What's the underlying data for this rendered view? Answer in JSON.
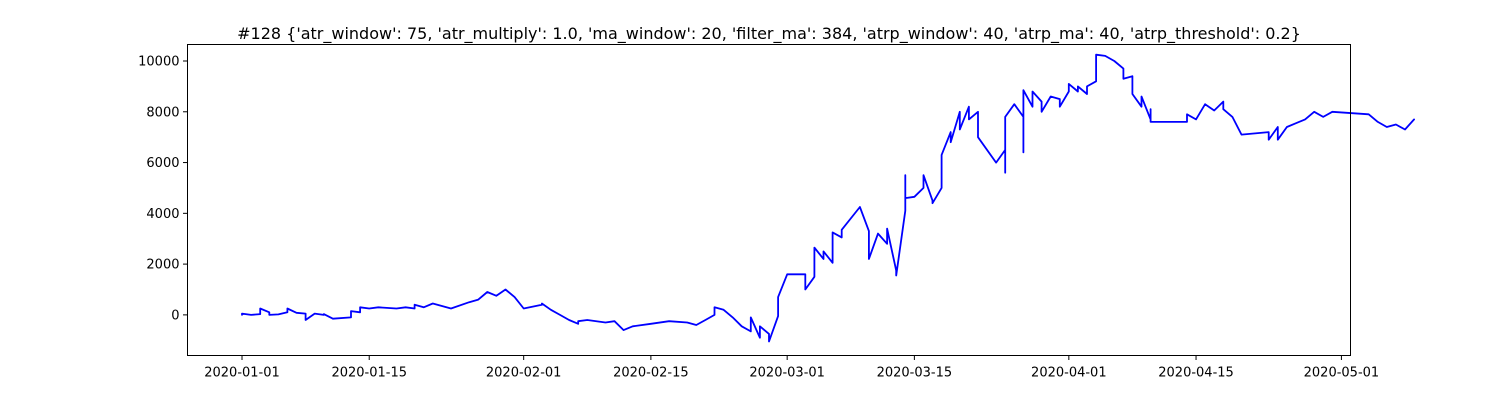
{
  "chart_data": {
    "type": "line",
    "title": "#128 {'atr_window': 75, 'atr_multiply': 1.0, 'ma_window': 20, 'filter_ma': 384, 'atrp_window': 40, 'atrp_ma': 40, 'atrp_threshold': 0.2}",
    "xlabel": "",
    "ylabel": "",
    "x_type": "date",
    "xlim": [
      "2019-12-26",
      "2020-05-02"
    ],
    "ylim": [
      -1600,
      10650
    ],
    "grid": false,
    "line_color": "#0000ff",
    "x_ticks": [
      {
        "value": "2020-01-01",
        "label": "2020-01-01"
      },
      {
        "value": "2020-01-15",
        "label": "2020-01-15"
      },
      {
        "value": "2020-02-01",
        "label": "2020-02-01"
      },
      {
        "value": "2020-02-15",
        "label": "2020-02-15"
      },
      {
        "value": "2020-03-01",
        "label": "2020-03-01"
      },
      {
        "value": "2020-03-15",
        "label": "2020-03-15"
      },
      {
        "value": "2020-04-01",
        "label": "2020-04-01"
      },
      {
        "value": "2020-04-15",
        "label": "2020-04-15"
      },
      {
        "value": "2020-05-01",
        "label": "2020-05-01"
      }
    ],
    "y_ticks": [
      {
        "value": 0,
        "label": "0"
      },
      {
        "value": 2000,
        "label": "2000"
      },
      {
        "value": 4000,
        "label": "4000"
      },
      {
        "value": 6000,
        "label": "6000"
      },
      {
        "value": 8000,
        "label": "8000"
      },
      {
        "value": 10000,
        "label": "10000"
      }
    ],
    "series": [
      {
        "points": [
          [
            "2020-01-01",
            0
          ],
          [
            "2020-01-01",
            50
          ],
          [
            "2020-01-02",
            0
          ],
          [
            "2020-01-03",
            30
          ],
          [
            "2020-01-03",
            250
          ],
          [
            "2020-01-04",
            100
          ],
          [
            "2020-01-04",
            0
          ],
          [
            "2020-01-05",
            20
          ],
          [
            "2020-01-06",
            100
          ],
          [
            "2020-01-06",
            250
          ],
          [
            "2020-01-07",
            80
          ],
          [
            "2020-01-08",
            50
          ],
          [
            "2020-01-08",
            -200
          ],
          [
            "2020-01-09",
            50
          ],
          [
            "2020-01-10",
            0
          ],
          [
            "2020-01-10",
            30
          ],
          [
            "2020-01-11",
            -150
          ],
          [
            "2020-01-13",
            -100
          ],
          [
            "2020-01-13",
            150
          ],
          [
            "2020-01-14",
            100
          ],
          [
            "2020-01-14",
            300
          ],
          [
            "2020-01-15",
            250
          ],
          [
            "2020-01-16",
            300
          ],
          [
            "2020-01-18",
            250
          ],
          [
            "2020-01-19",
            300
          ],
          [
            "2020-01-20",
            250
          ],
          [
            "2020-01-20",
            400
          ],
          [
            "2020-01-21",
            300
          ],
          [
            "2020-01-22",
            450
          ],
          [
            "2020-01-23",
            350
          ],
          [
            "2020-01-24",
            250
          ],
          [
            "2020-01-26",
            500
          ],
          [
            "2020-01-27",
            600
          ],
          [
            "2020-01-28",
            900
          ],
          [
            "2020-01-29",
            750
          ],
          [
            "2020-01-30",
            1000
          ],
          [
            "2020-01-31",
            700
          ],
          [
            "2020-02-01",
            250
          ],
          [
            "2020-02-03",
            400
          ],
          [
            "2020-02-03",
            450
          ],
          [
            "2020-02-04",
            200
          ],
          [
            "2020-02-05",
            0
          ],
          [
            "2020-02-06",
            -200
          ],
          [
            "2020-02-07",
            -350
          ],
          [
            "2020-02-07",
            -250
          ],
          [
            "2020-02-08",
            -200
          ],
          [
            "2020-02-10",
            -300
          ],
          [
            "2020-02-11",
            -250
          ],
          [
            "2020-02-12",
            -600
          ],
          [
            "2020-02-13",
            -450
          ],
          [
            "2020-02-15",
            -350
          ],
          [
            "2020-02-17",
            -250
          ],
          [
            "2020-02-19",
            -300
          ],
          [
            "2020-02-20",
            -400
          ],
          [
            "2020-02-21",
            -200
          ],
          [
            "2020-02-22",
            0
          ],
          [
            "2020-02-22",
            300
          ],
          [
            "2020-02-23",
            200
          ],
          [
            "2020-02-24",
            -100
          ],
          [
            "2020-02-25",
            -450
          ],
          [
            "2020-02-26",
            -650
          ],
          [
            "2020-02-26",
            -100
          ],
          [
            "2020-02-27",
            -900
          ],
          [
            "2020-02-27",
            -450
          ],
          [
            "2020-02-28",
            -750
          ],
          [
            "2020-02-28",
            -1050
          ],
          [
            "2020-02-29",
            -50
          ],
          [
            "2020-02-29",
            700
          ],
          [
            "2020-03-01",
            1600
          ],
          [
            "2020-03-03",
            1600
          ],
          [
            "2020-03-03",
            1550
          ],
          [
            "2020-03-03",
            1000
          ],
          [
            "2020-03-04",
            1500
          ],
          [
            "2020-03-04",
            2650
          ],
          [
            "2020-03-05",
            2200
          ],
          [
            "2020-03-05",
            2500
          ],
          [
            "2020-03-06",
            2050
          ],
          [
            "2020-03-06",
            2700
          ],
          [
            "2020-03-06",
            3250
          ],
          [
            "2020-03-07",
            3050
          ],
          [
            "2020-03-07",
            3350
          ],
          [
            "2020-03-09",
            4250
          ],
          [
            "2020-03-10",
            3300
          ],
          [
            "2020-03-10",
            2200
          ],
          [
            "2020-03-11",
            3200
          ],
          [
            "2020-03-12",
            2800
          ],
          [
            "2020-03-12",
            3400
          ],
          [
            "2020-03-13",
            1750
          ],
          [
            "2020-03-13",
            1550
          ],
          [
            "2020-03-14",
            4100
          ],
          [
            "2020-03-14",
            5500
          ],
          [
            "2020-03-14",
            4600
          ],
          [
            "2020-03-15",
            4650
          ],
          [
            "2020-03-16",
            5000
          ],
          [
            "2020-03-16",
            5500
          ],
          [
            "2020-03-17",
            4500
          ],
          [
            "2020-03-17",
            4400
          ],
          [
            "2020-03-18",
            5000
          ],
          [
            "2020-03-18",
            6300
          ],
          [
            "2020-03-19",
            7200
          ],
          [
            "2020-03-19",
            6800
          ],
          [
            "2020-03-20",
            8000
          ],
          [
            "2020-03-20",
            7300
          ],
          [
            "2020-03-21",
            8200
          ],
          [
            "2020-03-21",
            7700
          ],
          [
            "2020-03-22",
            8000
          ],
          [
            "2020-03-22",
            7000
          ],
          [
            "2020-03-24",
            6000
          ],
          [
            "2020-03-25",
            6500
          ],
          [
            "2020-03-25",
            5600
          ],
          [
            "2020-03-25",
            7800
          ],
          [
            "2020-03-26",
            8300
          ],
          [
            "2020-03-27",
            7800
          ],
          [
            "2020-03-27",
            6400
          ],
          [
            "2020-03-27",
            8850
          ],
          [
            "2020-03-28",
            8200
          ],
          [
            "2020-03-28",
            8800
          ],
          [
            "2020-03-29",
            8400
          ],
          [
            "2020-03-29",
            8000
          ],
          [
            "2020-03-30",
            8600
          ],
          [
            "2020-03-31",
            8500
          ],
          [
            "2020-03-31",
            8200
          ],
          [
            "2020-04-01",
            8800
          ],
          [
            "2020-04-01",
            9100
          ],
          [
            "2020-04-02",
            8800
          ],
          [
            "2020-04-02",
            9000
          ],
          [
            "2020-04-03",
            8700
          ],
          [
            "2020-04-03",
            9000
          ],
          [
            "2020-04-04",
            9200
          ],
          [
            "2020-04-04",
            10250
          ],
          [
            "2020-04-05",
            10200
          ],
          [
            "2020-04-06",
            10000
          ],
          [
            "2020-04-07",
            9700
          ],
          [
            "2020-04-07",
            9300
          ],
          [
            "2020-04-08",
            9400
          ],
          [
            "2020-04-08",
            8700
          ],
          [
            "2020-04-09",
            8200
          ],
          [
            "2020-04-09",
            8600
          ],
          [
            "2020-04-10",
            7700
          ],
          [
            "2020-04-10",
            8100
          ],
          [
            "2020-04-10",
            7600
          ],
          [
            "2020-04-14",
            7600
          ],
          [
            "2020-04-14",
            7900
          ],
          [
            "2020-04-15",
            7700
          ],
          [
            "2020-04-16",
            8300
          ],
          [
            "2020-04-17",
            8050
          ],
          [
            "2020-04-18",
            8400
          ],
          [
            "2020-04-18",
            8100
          ],
          [
            "2020-04-19",
            7800
          ],
          [
            "2020-04-20",
            7100
          ],
          [
            "2020-04-23",
            7200
          ],
          [
            "2020-04-23",
            6900
          ],
          [
            "2020-04-24",
            7400
          ],
          [
            "2020-04-24",
            6900
          ],
          [
            "2020-04-25",
            7400
          ],
          [
            "2020-04-26",
            7550
          ],
          [
            "2020-04-27",
            7700
          ],
          [
            "2020-04-28",
            8000
          ],
          [
            "2020-04-29",
            7800
          ],
          [
            "2020-04-30",
            8000
          ],
          [
            "2020-05-04",
            7900
          ],
          [
            "2020-05-05",
            7600
          ],
          [
            "2020-05-06",
            7400
          ],
          [
            "2020-05-07",
            7500
          ],
          [
            "2020-05-08",
            7300
          ],
          [
            "2020-05-09",
            7700
          ]
        ]
      }
    ]
  }
}
